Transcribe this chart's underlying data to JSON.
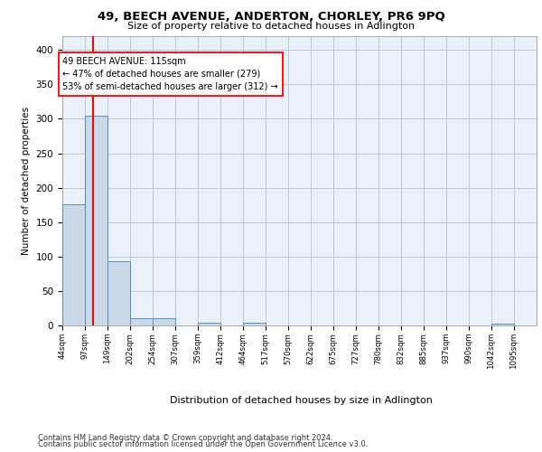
{
  "title": "49, BEECH AVENUE, ANDERTON, CHORLEY, PR6 9PQ",
  "subtitle": "Size of property relative to detached houses in Adlington",
  "xlabel": "Distribution of detached houses by size in Adlington",
  "ylabel": "Number of detached properties",
  "bar_color": "#c9d9e8",
  "bar_edge_color": "#5b8db8",
  "grid_color": "#c0c8d8",
  "background_color": "#eaf0f8",
  "annotation_text": "49 BEECH AVENUE: 115sqm\n← 47% of detached houses are smaller (279)\n53% of semi-detached houses are larger (312) →",
  "property_line_x": 115,
  "bins": [
    44,
    97,
    149,
    202,
    254,
    307,
    359,
    412,
    464,
    517,
    570,
    622,
    675,
    727,
    780,
    832,
    885,
    937,
    990,
    1042,
    1095
  ],
  "bin_labels": [
    "44sqm",
    "97sqm",
    "149sqm",
    "202sqm",
    "254sqm",
    "307sqm",
    "359sqm",
    "412sqm",
    "464sqm",
    "517sqm",
    "570sqm",
    "622sqm",
    "675sqm",
    "727sqm",
    "780sqm",
    "832sqm",
    "885sqm",
    "937sqm",
    "990sqm",
    "1042sqm",
    "1095sqm"
  ],
  "values": [
    176,
    304,
    93,
    10,
    10,
    0,
    4,
    0,
    4,
    0,
    0,
    0,
    0,
    0,
    0,
    0,
    0,
    0,
    0,
    3,
    0
  ],
  "ylim": [
    0,
    420
  ],
  "yticks": [
    0,
    50,
    100,
    150,
    200,
    250,
    300,
    350,
    400
  ],
  "footer1": "Contains HM Land Registry data © Crown copyright and database right 2024.",
  "footer2": "Contains public sector information licensed under the Open Government Licence v3.0."
}
